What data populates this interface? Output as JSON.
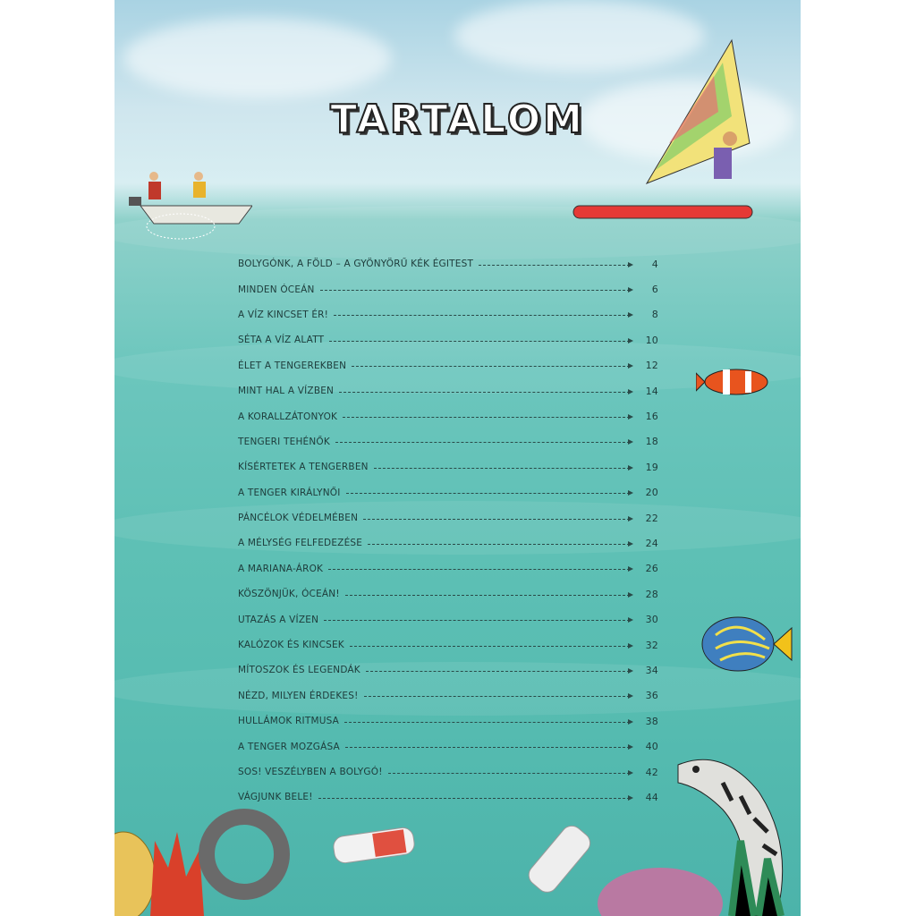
{
  "title": "TARTALOM",
  "entries": [
    {
      "label": "Bolygónk, a Föld – a gyönyörű kék égitest",
      "page": "4"
    },
    {
      "label": "Minden óceán",
      "page": "6"
    },
    {
      "label": "A víz kincset ér!",
      "page": "8"
    },
    {
      "label": "Séta a víz alatt",
      "page": "10"
    },
    {
      "label": "Élet a tengerekben",
      "page": "12"
    },
    {
      "label": "Mint hal a vízben",
      "page": "14"
    },
    {
      "label": "A korallzátonyok",
      "page": "16"
    },
    {
      "label": "Tengeri tehénők",
      "page": "18"
    },
    {
      "label": "Kísértetek a tengerben",
      "page": "19"
    },
    {
      "label": "A tenger királynői",
      "page": "20"
    },
    {
      "label": "Páncélok védelmében",
      "page": "22"
    },
    {
      "label": "A mélység felfedezése",
      "page": "24"
    },
    {
      "label": "A Mariana-árok",
      "page": "26"
    },
    {
      "label": "Köszönjük, óceán!",
      "page": "28"
    },
    {
      "label": "Utazás a vízen",
      "page": "30"
    },
    {
      "label": "Kalózok és kincsek",
      "page": "32"
    },
    {
      "label": "Mítoszok és legendák",
      "page": "34"
    },
    {
      "label": "Nézd, milyen érdekes!",
      "page": "36"
    },
    {
      "label": "Hullámok ritmusa",
      "page": "38"
    },
    {
      "label": "A tenger mozgása",
      "page": "40"
    },
    {
      "label": "SOS! Veszélyben a bolygó!",
      "page": "42"
    },
    {
      "label": "Vágjunk bele!",
      "page": "44"
    }
  ],
  "colors": {
    "sky": "#cfe6ee",
    "sea": "#5ec0b5",
    "text": "#1d3b3a"
  }
}
